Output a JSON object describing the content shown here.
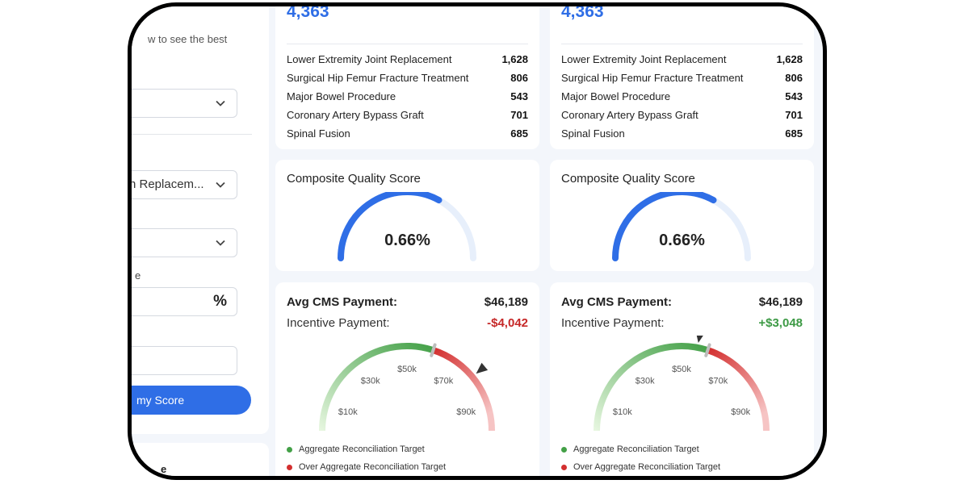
{
  "sidebar": {
    "subtitle_fragment": "w to see the best",
    "select2_value": "n Replacem...",
    "percent_field_label_fragment": "e",
    "percent_symbol": "%",
    "button_label": "my Score",
    "bottom_fragment": "e"
  },
  "cards": [
    {
      "episodes_total": "4,363",
      "episodes": [
        {
          "label": "Lower Extremity Joint Replacement",
          "value": "1,628"
        },
        {
          "label": "Surgical Hip Femur Fracture Treatment",
          "value": "806"
        },
        {
          "label": "Major Bowel Procedure",
          "value": "543"
        },
        {
          "label": "Coronary Artery Bypass Graft",
          "value": "701"
        },
        {
          "label": "Spinal Fusion",
          "value": "685"
        }
      ],
      "quality_title": "Composite Quality Score",
      "quality_value": "0.66%",
      "quality_fraction": 0.66,
      "cms_label": "Avg CMS Payment:",
      "cms_value": "$46,189",
      "incentive_label": "Incentive Payment:",
      "incentive_value": "-$4,042",
      "incentive_color": "#c62828",
      "needle_value": 78000,
      "ticks": [
        "$10k",
        "$30k",
        "$50k",
        "$70k",
        "$90k"
      ],
      "legend": [
        {
          "label": "Aggregate Reconciliation Target",
          "color": "#43a047"
        },
        {
          "label": "Over Aggregate Reconciliation Target",
          "color": "#d32f2f"
        }
      ]
    },
    {
      "episodes_total": "4,363",
      "episodes": [
        {
          "label": "Lower Extremity Joint Replacement",
          "value": "1,628"
        },
        {
          "label": "Surgical Hip Femur Fracture Treatment",
          "value": "806"
        },
        {
          "label": "Major Bowel Procedure",
          "value": "543"
        },
        {
          "label": "Coronary Artery Bypass Graft",
          "value": "701"
        },
        {
          "label": "Spinal Fusion",
          "value": "685"
        }
      ],
      "quality_title": "Composite Quality Score",
      "quality_value": "0.66%",
      "quality_fraction": 0.66,
      "cms_label": "Avg CMS Payment:",
      "cms_value": "$46,189",
      "incentive_label": "Incentive Payment:",
      "incentive_value": "+$3,048",
      "incentive_color": "#3d9a45",
      "needle_value": 56000,
      "ticks": [
        "$10k",
        "$30k",
        "$50k",
        "$70k",
        "$90k"
      ],
      "legend": [
        {
          "label": "Aggregate Reconciliation Target",
          "color": "#43a047"
        },
        {
          "label": "Over Aggregate Reconciliation Target",
          "color": "#d32f2f"
        }
      ]
    }
  ],
  "gauge_scale": {
    "min": 0,
    "max": 100000,
    "target": 60000
  },
  "colors": {
    "accent": "#2f6ee6",
    "track": "#e7effb",
    "green": "#43a047",
    "red": "#d32f2f"
  }
}
